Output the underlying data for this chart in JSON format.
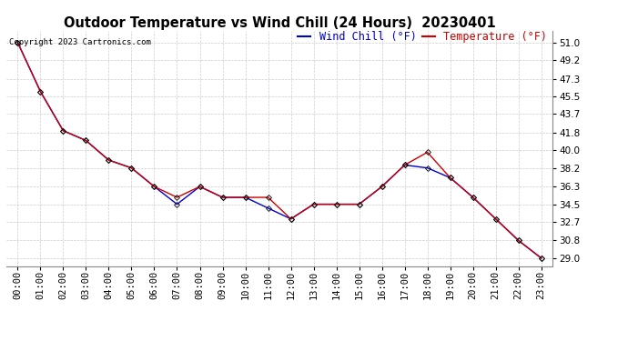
{
  "title": "Outdoor Temperature vs Wind Chill (24 Hours)  20230401",
  "copyright": "Copyright 2023 Cartronics.com",
  "legend_wind_chill": "Wind Chill (°F)",
  "legend_temperature": "Temperature (°F)",
  "hours": [
    "00:00",
    "01:00",
    "02:00",
    "03:00",
    "04:00",
    "05:00",
    "06:00",
    "07:00",
    "08:00",
    "09:00",
    "10:00",
    "11:00",
    "12:00",
    "13:00",
    "14:00",
    "15:00",
    "16:00",
    "17:00",
    "18:00",
    "19:00",
    "20:00",
    "21:00",
    "22:00",
    "23:00"
  ],
  "temperature": [
    51.0,
    46.0,
    42.0,
    41.0,
    39.0,
    38.2,
    36.3,
    35.2,
    36.3,
    35.2,
    35.2,
    35.2,
    33.0,
    34.5,
    34.5,
    34.5,
    36.3,
    38.5,
    39.8,
    37.2,
    35.2,
    33.0,
    30.8,
    29.0
  ],
  "wind_chill": [
    51.0,
    46.0,
    42.0,
    41.0,
    39.0,
    38.2,
    36.3,
    34.5,
    36.3,
    35.2,
    35.2,
    34.1,
    33.0,
    34.5,
    34.5,
    34.5,
    36.3,
    38.5,
    38.2,
    37.2,
    35.2,
    33.0,
    30.8,
    29.0
  ],
  "temp_color": "#cc0000",
  "wind_chill_color": "#0000cc",
  "marker": "D",
  "marker_size": 3,
  "ylim_min": 28.2,
  "ylim_max": 52.2,
  "yticks": [
    29.0,
    30.8,
    32.7,
    34.5,
    36.3,
    38.2,
    40.0,
    41.8,
    43.7,
    45.5,
    47.3,
    49.2,
    51.0
  ],
  "grid_color": "#cccccc",
  "background_color": "#ffffff",
  "title_fontsize": 10.5,
  "legend_fontsize": 8.5,
  "axis_fontsize": 7.5,
  "copyright_fontsize": 6.5,
  "linewidth": 1.0,
  "marker_edge_color": "#000000",
  "marker_edge_width": 0.6
}
